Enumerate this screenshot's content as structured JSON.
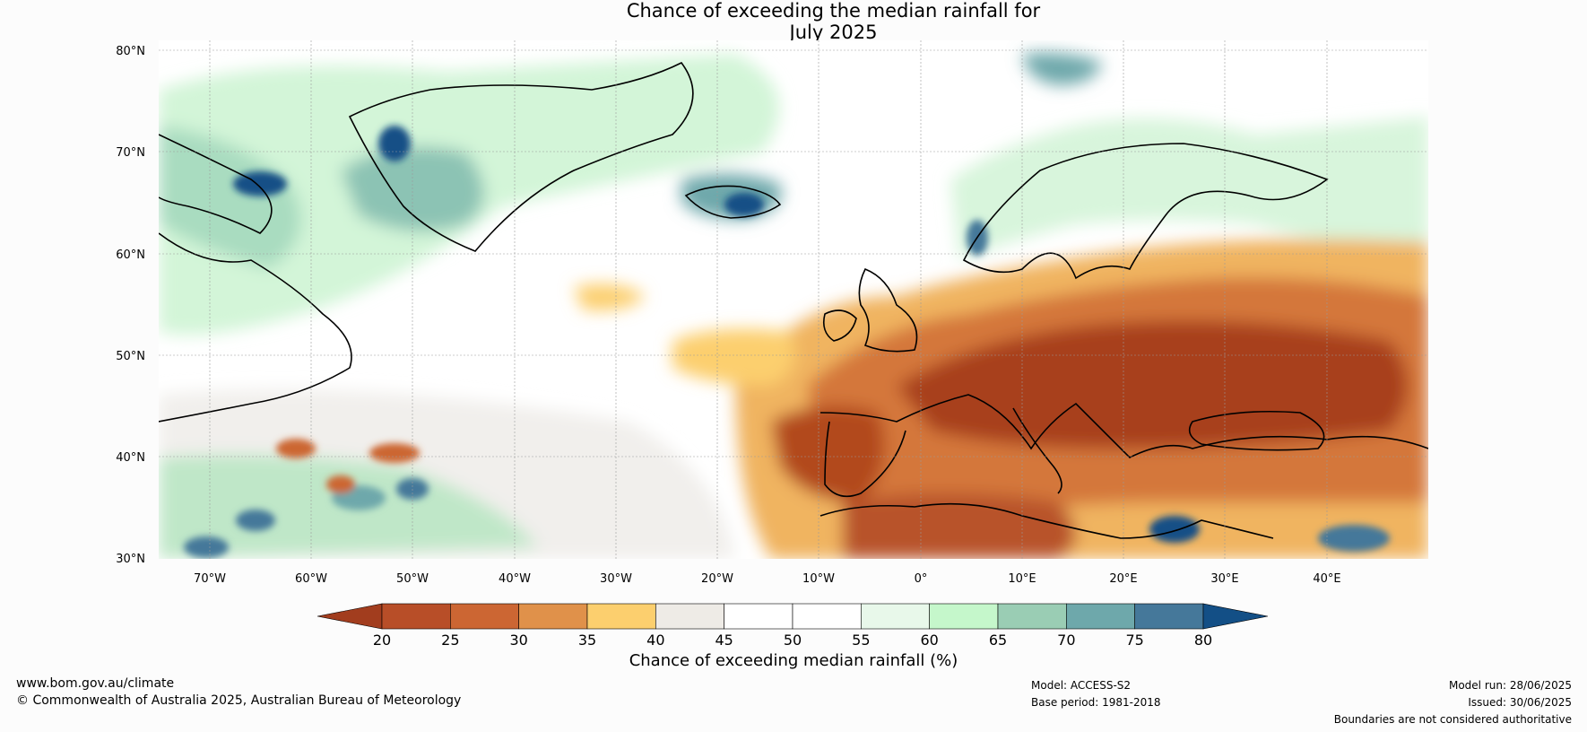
{
  "title": {
    "line1": "Chance of exceeding the median rainfall for",
    "line2": "July 2025"
  },
  "map": {
    "lat_labels": [
      "80°N",
      "70°N",
      "60°N",
      "50°N",
      "40°N",
      "30°N"
    ],
    "lon_labels": [
      "70°W",
      "60°W",
      "50°W",
      "40°W",
      "30°W",
      "20°W",
      "10°W",
      "0°",
      "10°E",
      "20°E",
      "30°E",
      "40°E"
    ],
    "extent": {
      "lon": [
        -75,
        50
      ],
      "lat": [
        30,
        81
      ]
    }
  },
  "colorbar": {
    "title": "Chance of exceeding median rainfall (%)",
    "ticks": [
      "20",
      "25",
      "30",
      "35",
      "40",
      "45",
      "50",
      "55",
      "60",
      "65",
      "70",
      "75",
      "80"
    ],
    "colors": [
      "#a23d1e",
      "#b84e28",
      "#cc6633",
      "#e0914a",
      "#fccf6e",
      "#eeebe6",
      "#ffffff",
      "#ffffff",
      "#e8f8ea",
      "#c5f7cb",
      "#9acdb4",
      "#6ea8ab",
      "#45789a",
      "#134f86"
    ],
    "extend": "both"
  },
  "footer": {
    "website": "www.bom.gov.au/climate",
    "copyright": "© Commonwealth of Australia 2025, Australian Bureau of Meteorology",
    "model": "Model: ACCESS-S2",
    "base_period": "Base period: 1981-2018",
    "model_run": "Model run: 28/06/2025",
    "issued": "Issued: 30/06/2025",
    "disclaimer": "Boundaries are not considered authoritative"
  }
}
